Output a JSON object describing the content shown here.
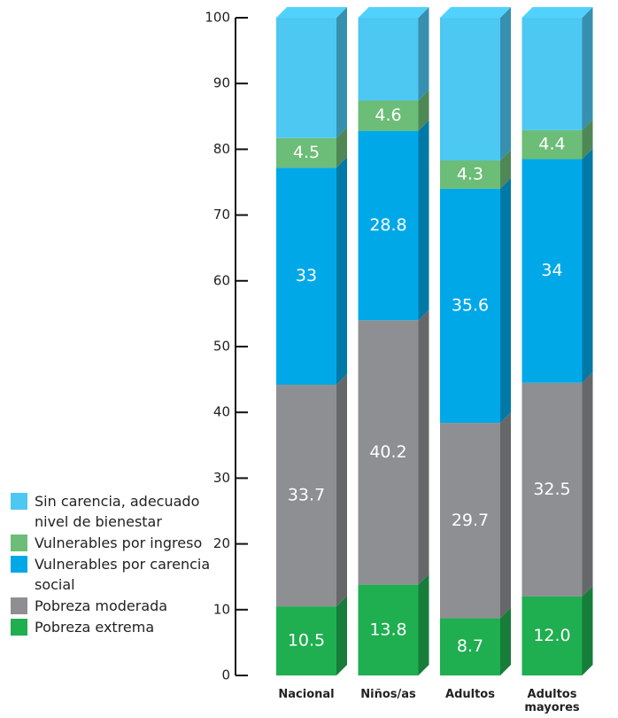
{
  "chart_data": {
    "type": "bar",
    "stacked": true,
    "categories": [
      "Nacional",
      "Niños/as",
      "Adultos",
      "Adultos mayores"
    ],
    "series": [
      {
        "name": "Pobreza extrema",
        "color": "#1fae50",
        "values": [
          10.5,
          13.8,
          8.7,
          12.0
        ],
        "value_labels": [
          "10.5",
          "13.8",
          "8.7",
          "12.0"
        ]
      },
      {
        "name": "Pobreza moderada",
        "color": "#8e8f92",
        "values": [
          33.7,
          40.2,
          29.7,
          32.5
        ],
        "value_labels": [
          "33.7",
          "40.2",
          "29.7",
          "32.5"
        ]
      },
      {
        "name": "Vulnerables por carencia social",
        "color": "#00a8e8",
        "values": [
          33,
          28.8,
          35.6,
          34
        ],
        "value_labels": [
          "33",
          "28.8",
          "35.6",
          "34"
        ]
      },
      {
        "name": "Vulnerables por ingreso",
        "color": "#6cbd77",
        "values": [
          4.5,
          4.6,
          4.3,
          4.4
        ],
        "value_labels": [
          "4.5",
          "4.6",
          "4.3",
          "4.4"
        ]
      },
      {
        "name": "Sin carencia, adecuado nivel de bienestar",
        "color": "#4dc8f2",
        "values": [
          18.3,
          12.6,
          21.7,
          17.1
        ]
      }
    ],
    "ylim": [
      0,
      100
    ],
    "yticks": [
      0,
      10,
      20,
      30,
      40,
      50,
      60,
      70,
      80,
      90,
      100
    ]
  }
}
